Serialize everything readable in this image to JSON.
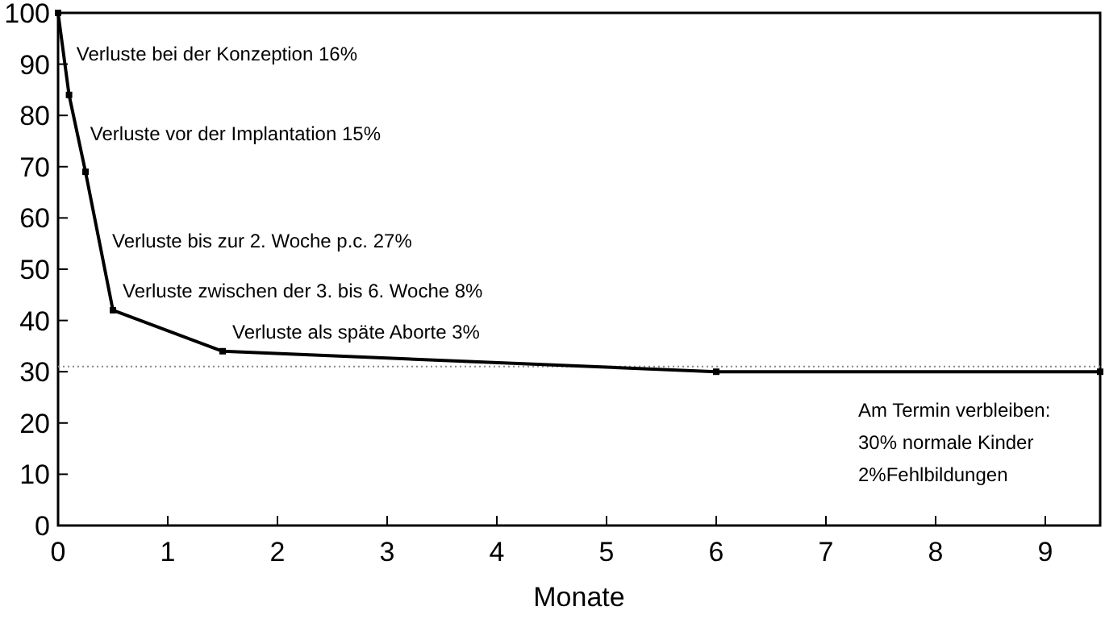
{
  "chart_data": {
    "type": "line",
    "xlabel": "Monate",
    "x": [
      0,
      0.1,
      0.25,
      0.5,
      1.5,
      6,
      9.5
    ],
    "series": [
      {
        "color": "#000000",
        "values": [
          100,
          84,
          69,
          42,
          34,
          30,
          30
        ]
      }
    ],
    "xlim": [
      0,
      9.5
    ],
    "xticks": [
      0,
      1,
      2,
      3,
      4,
      5,
      6,
      7,
      8,
      9
    ],
    "ylim": [
      0,
      100
    ],
    "yticks": [
      0,
      10,
      20,
      30,
      40,
      50,
      60,
      70,
      80,
      90,
      100
    ],
    "grid": false,
    "marker": "square",
    "line_style": "solid",
    "ref_lines": [
      {
        "axis": "y",
        "value": 31,
        "color": "#888888",
        "line_style": "dotted"
      }
    ],
    "annotations": [
      "Verluste bei der Konzeption 16%",
      "Verluste vor der Implantation 15%",
      "Verluste bis zur 2. Woche p.c. 27%",
      "Verluste zwischen der 3. bis 6. Woche 8%",
      "Verluste als späte Aborte 3%",
      "Am Termin verbleiben:\n30% normale Kinder\n2%Fehlbildungen"
    ]
  }
}
